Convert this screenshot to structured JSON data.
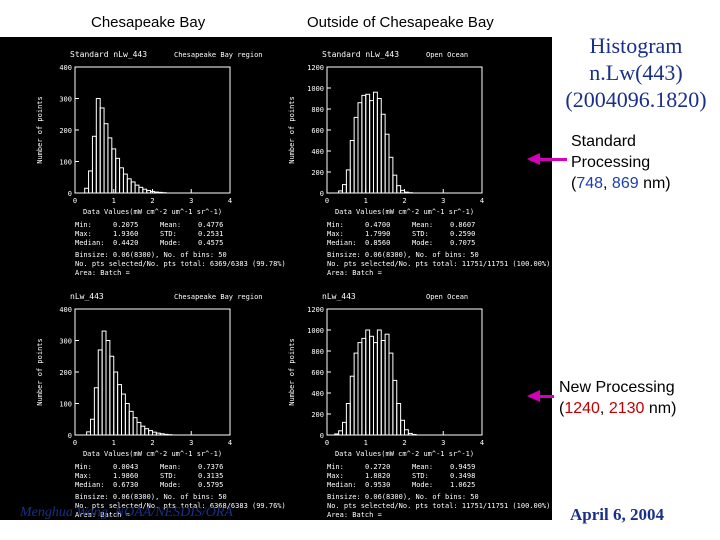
{
  "headers": {
    "left": "Chesapeake Bay",
    "right": "Outside of Chesapeake Bay"
  },
  "slide_title": [
    "Histogram",
    "n.Lw(443)",
    "(2004096.1820)"
  ],
  "annotations": {
    "standard": {
      "line1": "Standard",
      "line2": "Processing",
      "open": "(",
      "w1": "748",
      "sep": ", ",
      "w2": "869",
      "close": " nm)"
    },
    "new": {
      "line1": "New Processing",
      "open": "(",
      "w1": "1240",
      "sep": ", ",
      "w2": "2130",
      "close": " nm)"
    }
  },
  "footer": {
    "credit": "Menghua Wang, NOAA/NESDIS/ORA",
    "date": "April 6, 2004"
  },
  "colors": {
    "background": "#000000",
    "plot": "#ffffff",
    "title": "#1a2f8a",
    "arrow": "#d400b8",
    "wl_standard": "#1a3fb0",
    "wl_new": "#c00000"
  },
  "chart_data": [
    {
      "type": "bar",
      "title": "Standard nLw_443",
      "region": "Chesapeake Bay region",
      "xlabel": "Data Values(mW cm^-2 um^-1 sr^-1)",
      "ylabel": "Number of points",
      "xlim": [
        0,
        4
      ],
      "ylim": [
        0,
        400
      ],
      "xticks": [
        "0",
        "1",
        "2",
        "3",
        "4"
      ],
      "yticks": [
        "0",
        "100",
        "200",
        "300",
        "400"
      ],
      "bin_start": 0.25,
      "bin_width": 0.1,
      "values": [
        15,
        70,
        180,
        300,
        270,
        220,
        175,
        140,
        110,
        80,
        60,
        45,
        35,
        25,
        18,
        12,
        8,
        5,
        3,
        2,
        1
      ],
      "stats": [
        [
          "Min",
          "0.2075"
        ],
        [
          "Max",
          "1.9360"
        ],
        [
          "Median",
          "0.4420"
        ],
        [
          "Mean",
          "0.4776"
        ],
        [
          "STD",
          "0.2531"
        ],
        [
          "Mode",
          "0.4575"
        ]
      ],
      "info": [
        "Binsize: 0.06(8300), No. of bins: 50",
        "No. pts selected/No. pts total: 6369/6383 (99.78%)",
        "Area: Batch ="
      ]
    },
    {
      "type": "bar",
      "title": "Standard nLw_443",
      "region": "Open Ocean",
      "xlabel": "Data Values(mW cm^-2 um^-1 sr^-1)",
      "ylabel": "Number of points",
      "xlim": [
        0,
        4
      ],
      "ylim": [
        0,
        1200
      ],
      "xticks": [
        "0",
        "1",
        "2",
        "3",
        "4"
      ],
      "yticks": [
        "0",
        "200",
        "400",
        "600",
        "800",
        "1000",
        "1200"
      ],
      "bin_start": 0.3,
      "bin_width": 0.1,
      "values": [
        20,
        80,
        220,
        500,
        720,
        860,
        930,
        940,
        880,
        960,
        900,
        750,
        560,
        340,
        170,
        70,
        25,
        8,
        3
      ],
      "stats": [
        [
          "Min",
          "0.4700"
        ],
        [
          "Max",
          "1.7990"
        ],
        [
          "Median",
          "0.8560"
        ],
        [
          "Mean",
          "0.8607"
        ],
        [
          "STD",
          "0.2590"
        ],
        [
          "Mode",
          "0.7075"
        ]
      ],
      "info": [
        "Binsize: 0.06(8300), No. of bins: 50",
        "No. pts selected/No. pts total: 11751/11751 (100.00%)",
        "Area: Batch ="
      ]
    },
    {
      "type": "bar",
      "title": "nLw_443",
      "region": "Chesapeake Bay region",
      "xlabel": "Data Values(mW cm^-2 um^-1 sr^-1)",
      "ylabel": "Number of points",
      "xlim": [
        0,
        4
      ],
      "ylim": [
        0,
        400
      ],
      "xticks": [
        "0",
        "1",
        "2",
        "3",
        "4"
      ],
      "yticks": [
        "0",
        "100",
        "200",
        "300",
        "400"
      ],
      "bin_start": 0.3,
      "bin_width": 0.1,
      "values": [
        10,
        50,
        150,
        270,
        330,
        300,
        250,
        200,
        160,
        130,
        100,
        75,
        55,
        40,
        28,
        20,
        14,
        9,
        6,
        4,
        2,
        1
      ],
      "stats": [
        [
          "Min",
          "0.0043"
        ],
        [
          "Max",
          "1.9860"
        ],
        [
          "Median",
          "0.6730"
        ],
        [
          "Mean",
          "0.7376"
        ],
        [
          "STD",
          "0.3135"
        ],
        [
          "Mode",
          "0.5795"
        ]
      ],
      "info": [
        "Binsize: 0.06(8300), No. of bins: 50",
        "No. pts selected/No. pts total: 6368/6383 (99.76%)",
        "Area: Batch ="
      ]
    },
    {
      "type": "bar",
      "title": "nLw_443",
      "region": "Open Ocean",
      "xlabel": "Data Values(mW cm^-2 um^-1 sr^-1)",
      "ylabel": "Number of points",
      "xlim": [
        0,
        4
      ],
      "ylim": [
        0,
        1200
      ],
      "xticks": [
        "0",
        "1",
        "2",
        "3",
        "4"
      ],
      "yticks": [
        "0",
        "200",
        "400",
        "600",
        "800",
        "1000",
        "1200"
      ],
      "bin_start": 0.2,
      "bin_width": 0.1,
      "values": [
        10,
        40,
        120,
        300,
        560,
        780,
        880,
        920,
        1000,
        940,
        880,
        1000,
        900,
        960,
        780,
        520,
        300,
        140,
        50,
        15,
        5
      ],
      "stats": [
        [
          "Min",
          "0.2720"
        ],
        [
          "Max",
          "1.8820"
        ],
        [
          "Median",
          "0.9530"
        ],
        [
          "Mean",
          "0.9459"
        ],
        [
          "STD",
          "0.3498"
        ],
        [
          "Mode",
          "1.0625"
        ]
      ],
      "info": [
        "Binsize: 0.06(8300), No. of bins: 50",
        "No. pts selected/No. pts total: 11751/11751 (100.00%)",
        "Area: Batch ="
      ]
    }
  ]
}
